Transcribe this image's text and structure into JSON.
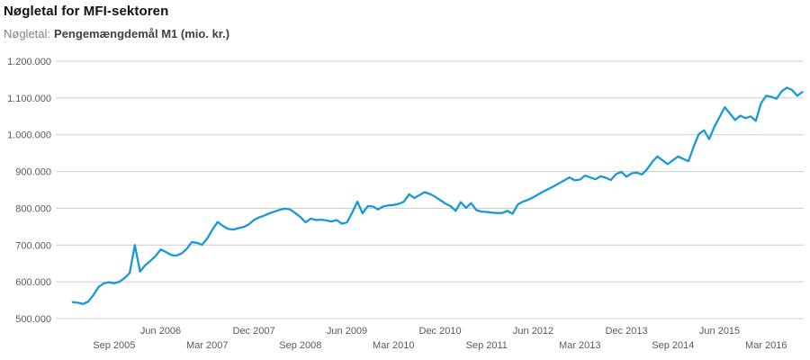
{
  "header": {
    "title": "Nøgletal for MFI-sektoren",
    "series_label": "Nøgletal:",
    "series_value": "Pengemængdemål M1 (mio. kr.)"
  },
  "chart_data": {
    "type": "line",
    "title": "Pengemængdemål M1 (mio. kr.)",
    "series_name": "Pengemængdemål M1",
    "unit": "mio. kr.",
    "frequency": "monthly",
    "start": "2005-01",
    "end": "2016-10",
    "line_color": "#1899d5",
    "grid_color": "#cccbc9",
    "axis_text_color": "#58595b",
    "ylim": [
      500000,
      1200000
    ],
    "grid": true,
    "legend_position": "none",
    "y_ticks": [
      {
        "value": 1200000,
        "label": "1.200.000"
      },
      {
        "value": 1100000,
        "label": "1.100.000"
      },
      {
        "value": 1000000,
        "label": "1.000.000"
      },
      {
        "value": 900000,
        "label": "900.000"
      },
      {
        "value": 800000,
        "label": "800.000"
      },
      {
        "value": 700000,
        "label": "700.000"
      },
      {
        "value": 600000,
        "label": "600.000"
      },
      {
        "value": 500000,
        "label": "500.000"
      }
    ],
    "x_ticks_row1": [
      {
        "label": "Jun 2006",
        "m": 17
      },
      {
        "label": "Dec 2007",
        "m": 35
      },
      {
        "label": "Jun 2009",
        "m": 53
      },
      {
        "label": "Dec 2010",
        "m": 71
      },
      {
        "label": "Jun 2012",
        "m": 89
      },
      {
        "label": "Dec 2013",
        "m": 107
      },
      {
        "label": "Jun 2015",
        "m": 125
      }
    ],
    "x_ticks_row2": [
      {
        "label": "Sep 2005",
        "m": 8
      },
      {
        "label": "Mar 2007",
        "m": 26
      },
      {
        "label": "Sep 2008",
        "m": 44
      },
      {
        "label": "Mar 2010",
        "m": 62
      },
      {
        "label": "Sep 2011",
        "m": 80
      },
      {
        "label": "Mar 2013",
        "m": 98
      },
      {
        "label": "Sep 2014",
        "m": 116
      },
      {
        "label": "Mar 2016",
        "m": 134
      }
    ],
    "values": [
      545000,
      543000,
      540000,
      546000,
      564000,
      586000,
      596000,
      599000,
      596000,
      600000,
      610000,
      624000,
      700000,
      628000,
      645000,
      657000,
      670000,
      688000,
      681000,
      673000,
      671000,
      677000,
      689000,
      708000,
      706000,
      701000,
      718000,
      742000,
      763000,
      752000,
      744000,
      742000,
      746000,
      749000,
      756000,
      768000,
      775000,
      780000,
      786000,
      791000,
      796000,
      799000,
      797000,
      787000,
      776000,
      762000,
      772000,
      768000,
      769000,
      767000,
      764000,
      768000,
      758000,
      762000,
      788000,
      818000,
      786000,
      806000,
      805000,
      797000,
      805000,
      808000,
      809000,
      812000,
      818000,
      838000,
      828000,
      836000,
      844000,
      839000,
      832000,
      822000,
      813000,
      806000,
      793000,
      817000,
      801000,
      814000,
      795000,
      791000,
      790000,
      788000,
      787000,
      787000,
      793000,
      785000,
      810000,
      818000,
      823000,
      830000,
      838000,
      846000,
      853000,
      860000,
      868000,
      876000,
      884000,
      876000,
      878000,
      889000,
      884000,
      879000,
      887000,
      883000,
      877000,
      893000,
      899000,
      886000,
      895000,
      897000,
      892000,
      906000,
      926000,
      941000,
      930000,
      920000,
      931000,
      941000,
      934000,
      928000,
      968000,
      1002000,
      1012000,
      988000,
      1022000,
      1048000,
      1075000,
      1058000,
      1040000,
      1052000,
      1045000,
      1050000,
      1038000,
      1085000,
      1106000,
      1103000,
      1098000,
      1118000,
      1128000,
      1122000,
      1106000,
      1116000
    ]
  }
}
